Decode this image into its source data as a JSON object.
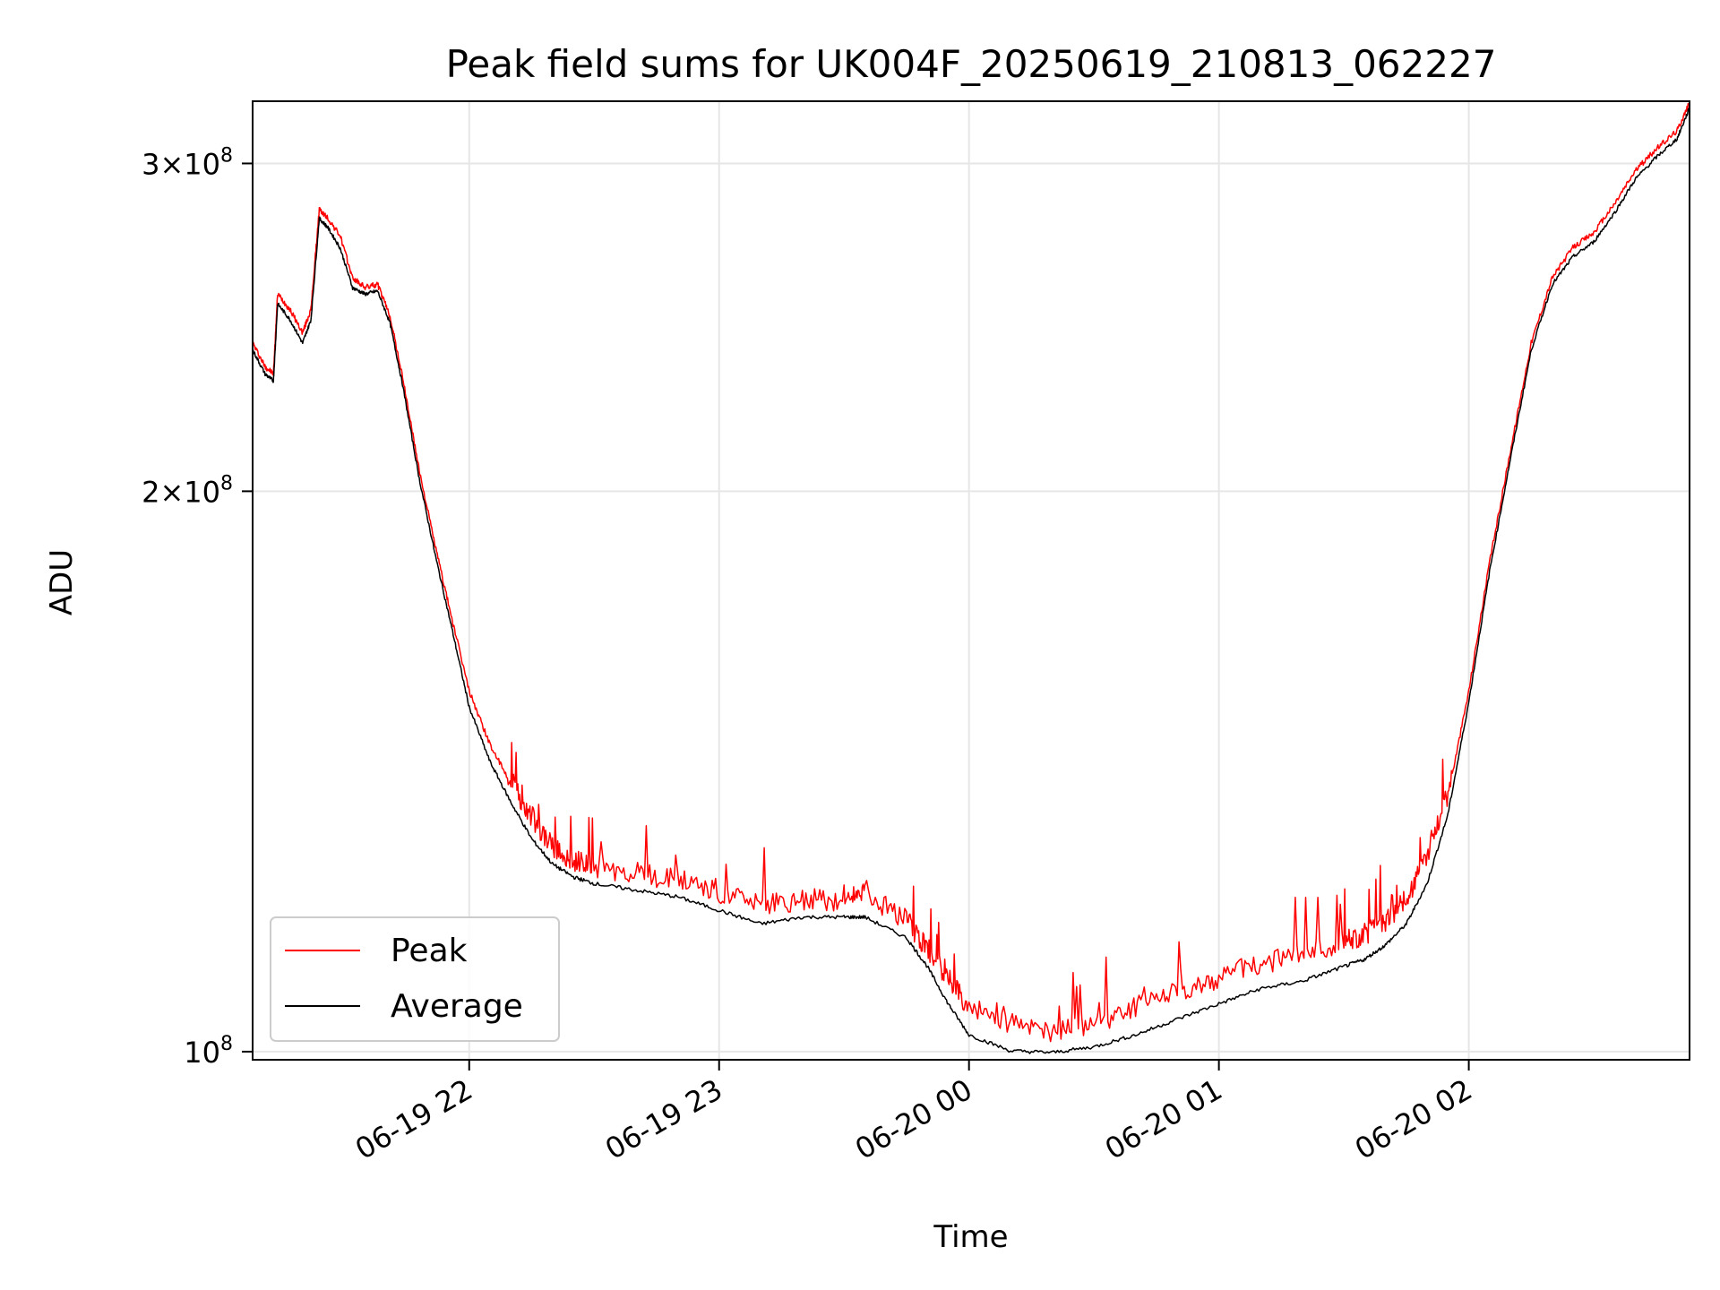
{
  "chart_data": {
    "type": "line",
    "title": "Peak field sums for UK004F_20250619_210813_062227",
    "xlabel": "Time",
    "ylabel": "ADU",
    "y_scale": "log",
    "ylim": [
      99000000,
      324000000
    ],
    "xlim": [
      "2025-06-19 21:08",
      "2025-06-20 02:53"
    ],
    "x_ticks": [
      {
        "value": "2025-06-19 22:00",
        "label": "06-19 22"
      },
      {
        "value": "2025-06-19 23:00",
        "label": "06-19 23"
      },
      {
        "value": "2025-06-20 00:00",
        "label": "06-20 00"
      },
      {
        "value": "2025-06-20 01:00",
        "label": "06-20 01"
      },
      {
        "value": "2025-06-20 02:00",
        "label": "06-20 02"
      }
    ],
    "y_ticks": [
      {
        "value": 300000000,
        "mantissa": "3",
        "exponent": "8"
      },
      {
        "value": 200000000,
        "mantissa": "2",
        "exponent": "8"
      },
      {
        "value": 100000000,
        "mantissa": "",
        "exponent": "8"
      }
    ],
    "grid": true,
    "legend_position": "lower-left",
    "series": [
      {
        "name": "Peak",
        "color": "#ff0000",
        "x": [
          "2025-06-19 21:08",
          "2025-06-19 21:11",
          "2025-06-19 21:13",
          "2025-06-19 21:14",
          "2025-06-19 21:17",
          "2025-06-19 21:20",
          "2025-06-19 21:22",
          "2025-06-19 21:24",
          "2025-06-19 21:26",
          "2025-06-19 21:29",
          "2025-06-19 21:32",
          "2025-06-19 21:35",
          "2025-06-19 21:38",
          "2025-06-19 21:41",
          "2025-06-19 21:44",
          "2025-06-19 21:48",
          "2025-06-19 21:52",
          "2025-06-19 21:56",
          "2025-06-19 22:00",
          "2025-06-19 22:05",
          "2025-06-19 22:10",
          "2025-06-19 22:15",
          "2025-06-19 22:20",
          "2025-06-19 22:25",
          "2025-06-19 22:30",
          "2025-06-19 22:40",
          "2025-06-19 22:50",
          "2025-06-19 23:00",
          "2025-06-19 23:10",
          "2025-06-19 23:20",
          "2025-06-19 23:30",
          "2025-06-19 23:35",
          "2025-06-19 23:45",
          "2025-06-19 23:50",
          "2025-06-19 23:55",
          "2025-06-20 00:00",
          "2025-06-20 00:10",
          "2025-06-20 00:20",
          "2025-06-20 00:30",
          "2025-06-20 00:40",
          "2025-06-20 00:50",
          "2025-06-20 01:00",
          "2025-06-20 01:10",
          "2025-06-20 01:20",
          "2025-06-20 01:30",
          "2025-06-20 01:35",
          "2025-06-20 01:40",
          "2025-06-20 01:45",
          "2025-06-20 01:50",
          "2025-06-20 01:55",
          "2025-06-20 02:00",
          "2025-06-20 02:05",
          "2025-06-20 02:10",
          "2025-06-20 02:15",
          "2025-06-20 02:20",
          "2025-06-20 02:25",
          "2025-06-20 02:30",
          "2025-06-20 02:35",
          "2025-06-20 02:40",
          "2025-06-20 02:45",
          "2025-06-20 02:50",
          "2025-06-20 02:53"
        ],
        "values": [
          240000000,
          233000000,
          231000000,
          255000000,
          250000000,
          243000000,
          250000000,
          283000000,
          280000000,
          274000000,
          260000000,
          257000000,
          258000000,
          248000000,
          230000000,
          205000000,
          186000000,
          170000000,
          156000000,
          146000000,
          139000000,
          133000000,
          128000000,
          126000000,
          125000000,
          124000000,
          123000000,
          121000000,
          119000000,
          120000000,
          120000000,
          121000000,
          117000000,
          113000000,
          109000000,
          105000000,
          103000000,
          102000000,
          103000000,
          105000000,
          107000000,
          109000000,
          111000000,
          112000000,
          114000000,
          115000000,
          117000000,
          120000000,
          127000000,
          137000000,
          156000000,
          183000000,
          210000000,
          240000000,
          260000000,
          270000000,
          275000000,
          285000000,
          297000000,
          305000000,
          312000000,
          323000000
        ]
      },
      {
        "name": "Average",
        "color": "#000000",
        "x": [
          "2025-06-19 21:08",
          "2025-06-19 21:11",
          "2025-06-19 21:13",
          "2025-06-19 21:14",
          "2025-06-19 21:17",
          "2025-06-19 21:20",
          "2025-06-19 21:22",
          "2025-06-19 21:24",
          "2025-06-19 21:26",
          "2025-06-19 21:29",
          "2025-06-19 21:32",
          "2025-06-19 21:35",
          "2025-06-19 21:38",
          "2025-06-19 21:41",
          "2025-06-19 21:44",
          "2025-06-19 21:48",
          "2025-06-19 21:52",
          "2025-06-19 21:56",
          "2025-06-19 22:00",
          "2025-06-19 22:05",
          "2025-06-19 22:10",
          "2025-06-19 22:15",
          "2025-06-19 22:20",
          "2025-06-19 22:25",
          "2025-06-19 22:30",
          "2025-06-19 22:40",
          "2025-06-19 22:50",
          "2025-06-19 23:00",
          "2025-06-19 23:10",
          "2025-06-19 23:20",
          "2025-06-19 23:30",
          "2025-06-19 23:35",
          "2025-06-19 23:45",
          "2025-06-19 23:50",
          "2025-06-19 23:55",
          "2025-06-20 00:00",
          "2025-06-20 00:10",
          "2025-06-20 00:20",
          "2025-06-20 00:30",
          "2025-06-20 00:40",
          "2025-06-20 00:50",
          "2025-06-20 01:00",
          "2025-06-20 01:10",
          "2025-06-20 01:20",
          "2025-06-20 01:30",
          "2025-06-20 01:35",
          "2025-06-20 01:40",
          "2025-06-20 01:45",
          "2025-06-20 01:50",
          "2025-06-20 01:55",
          "2025-06-20 02:00",
          "2025-06-20 02:05",
          "2025-06-20 02:10",
          "2025-06-20 02:15",
          "2025-06-20 02:20",
          "2025-06-20 02:25",
          "2025-06-20 02:30",
          "2025-06-20 02:35",
          "2025-06-20 02:40",
          "2025-06-20 02:45",
          "2025-06-20 02:50",
          "2025-06-20 02:53"
        ],
        "values": [
          238000000,
          231000000,
          229000000,
          252000000,
          247000000,
          240000000,
          247000000,
          280000000,
          277000000,
          270000000,
          257000000,
          255000000,
          256000000,
          246000000,
          228000000,
          203000000,
          184000000,
          168000000,
          153000000,
          143000000,
          136000000,
          130000000,
          126000000,
          124000000,
          123000000,
          122000000,
          121000000,
          119000000,
          117000000,
          118000000,
          118000000,
          118000000,
          115000000,
          111000000,
          106000000,
          102000000,
          100000000,
          99800000,
          100500000,
          102000000,
          104000000,
          106000000,
          108000000,
          109000000,
          111000000,
          112000000,
          114000000,
          117000000,
          123000000,
          134000000,
          154000000,
          181000000,
          208000000,
          238000000,
          258000000,
          267000000,
          272000000,
          282000000,
          294000000,
          302000000,
          309000000,
          321000000
        ]
      }
    ]
  }
}
